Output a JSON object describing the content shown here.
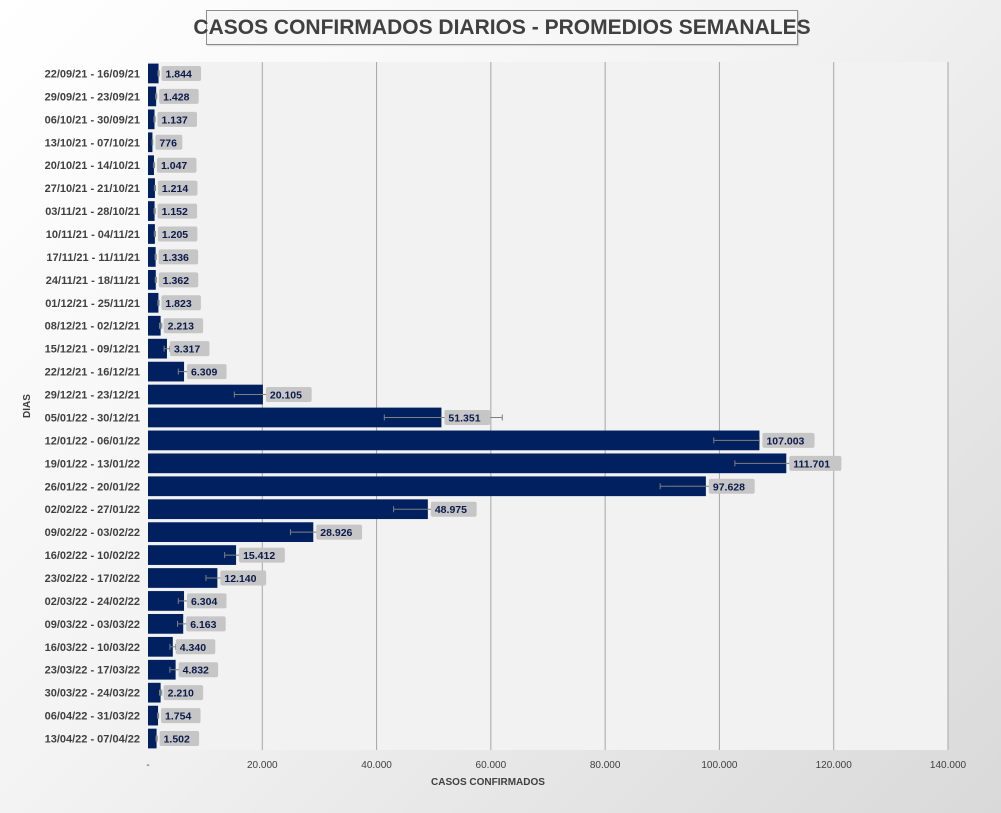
{
  "chart_data": {
    "type": "bar",
    "orientation": "horizontal",
    "title": "CASOS CONFIRMADOS DIARIOS - PROMEDIOS SEMANALES",
    "xlabel": "CASOS CONFIRMADOS",
    "ylabel": "DIAS",
    "xlim": [
      0,
      140000
    ],
    "x_ticks": [
      0,
      20000,
      40000,
      60000,
      80000,
      100000,
      120000,
      140000
    ],
    "x_tick_labels": [
      "-",
      "20.000",
      "40.000",
      "60.000",
      "80.000",
      "100.000",
      "120.000",
      "140.000"
    ],
    "grid": true,
    "error_bars": true,
    "colors": {
      "bar": "#002060",
      "label_bg": "#c6c6c6",
      "plot_bg": "#f2f2f2",
      "grid": "#a6a6a6"
    },
    "categories": [
      "22/09/21 - 16/09/21",
      "29/09/21 - 23/09/21",
      "06/10/21 - 30/09/21",
      "13/10/21 - 07/10/21",
      "20/10/21 - 14/10/21",
      "27/10/21 - 21/10/21",
      "03/11/21 - 28/10/21",
      "10/11/21 - 04/11/21",
      "17/11/21 - 11/11/21",
      "24/11/21 - 18/11/21",
      "01/12/21 - 25/11/21",
      "08/12/21 - 02/12/21",
      "15/12/21 - 09/12/21",
      "22/12/21 - 16/12/21",
      "29/12/21 - 23/12/21",
      "05/01/22 - 30/12/21",
      "12/01/22 - 06/01/22",
      "19/01/22 - 13/01/22",
      "26/01/22 - 20/01/22",
      "02/02/22 - 27/01/22",
      "09/02/22 - 03/02/22",
      "16/02/22 - 10/02/22",
      "23/02/22 - 17/02/22",
      "02/03/22 - 24/02/22",
      "09/03/22 - 03/03/22",
      "16/03/22 - 10/03/22",
      "23/03/22 - 17/03/22",
      "30/03/22 - 24/03/22",
      "06/04/22 - 31/03/22",
      "13/04/22 - 07/04/22"
    ],
    "values": [
      1844,
      1428,
      1137,
      776,
      1047,
      1214,
      1152,
      1205,
      1336,
      1362,
      1823,
      2213,
      3317,
      6309,
      20105,
      51351,
      107003,
      111701,
      97628,
      48975,
      28926,
      15412,
      12140,
      6304,
      6163,
      4340,
      4832,
      2210,
      1754,
      1502
    ],
    "value_labels": [
      "1.844",
      "1.428",
      "1.137",
      "776",
      "1.047",
      "1.214",
      "1.152",
      "1.205",
      "1.336",
      "1.362",
      "1.823",
      "2.213",
      "3.317",
      "6.309",
      "20.105",
      "51.351",
      "107.003",
      "111.701",
      "97.628",
      "48.975",
      "28.926",
      "15.412",
      "12.140",
      "6.304",
      "6.163",
      "4.340",
      "4.832",
      "2.210",
      "1.754",
      "1.502"
    ],
    "error_low": [
      1744,
      1328,
      1037,
      726,
      947,
      1114,
      1052,
      1105,
      1236,
      1262,
      1723,
      2013,
      2817,
      5309,
      15105,
      41351,
      99003,
      102701,
      89628,
      42975,
      24926,
      13412,
      10140,
      5304,
      5163,
      3840,
      3832,
      2010,
      1654,
      1402
    ],
    "error_high": [
      1944,
      1528,
      1237,
      826,
      1147,
      1314,
      1252,
      1305,
      1436,
      1462,
      1923,
      2413,
      3817,
      7309,
      25105,
      62000,
      107003,
      121000,
      105500,
      54975,
      30926,
      17412,
      13140,
      7304,
      7163,
      4840,
      5832,
      2410,
      1854,
      1602
    ]
  }
}
